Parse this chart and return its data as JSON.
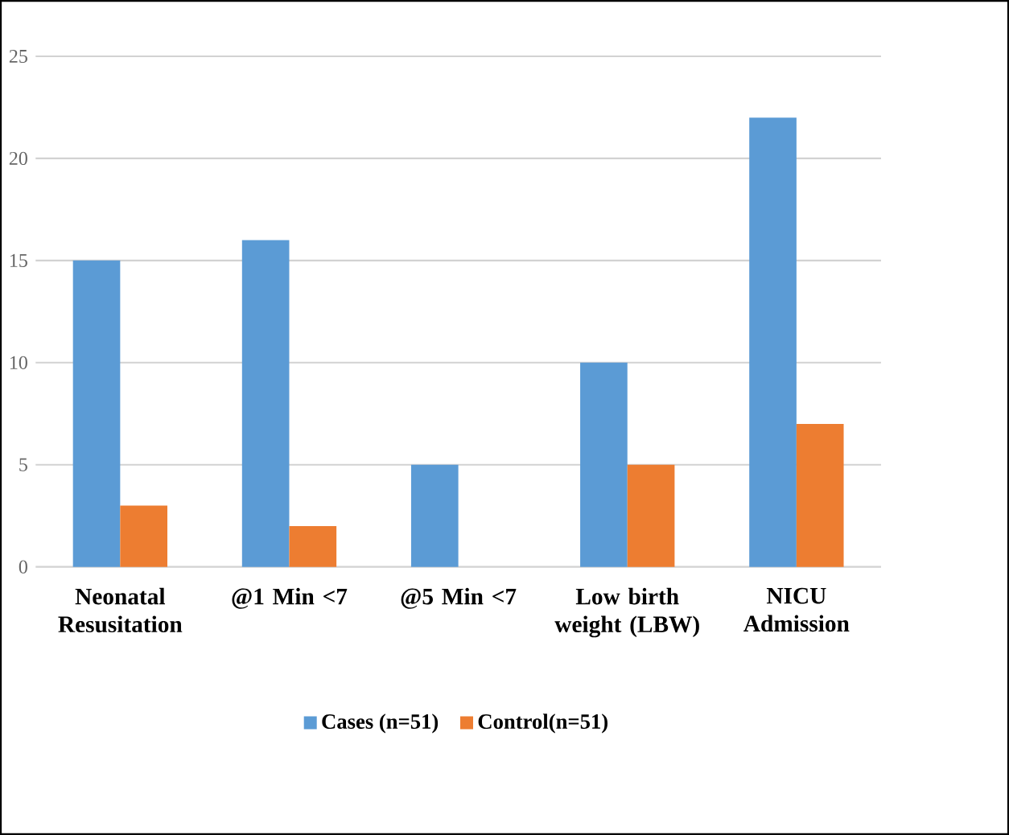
{
  "chart_data": {
    "type": "bar",
    "categories": [
      "Neonatal Resusitation",
      "@1 Min <7",
      "@5 Min <7",
      "Low birth weight (LBW)",
      "NICU Admission"
    ],
    "series": [
      {
        "name": "Cases (n=51)",
        "color": "#5b9bd5",
        "values": [
          15,
          16,
          5,
          10,
          22
        ]
      },
      {
        "name": "Control(n=51)",
        "color": "#ed7d31",
        "values": [
          3,
          2,
          0,
          5,
          7
        ]
      }
    ],
    "ylim": [
      0,
      25
    ],
    "yticks": [
      0,
      5,
      10,
      15,
      20,
      25
    ],
    "grid": "y",
    "legend": "bottom"
  }
}
